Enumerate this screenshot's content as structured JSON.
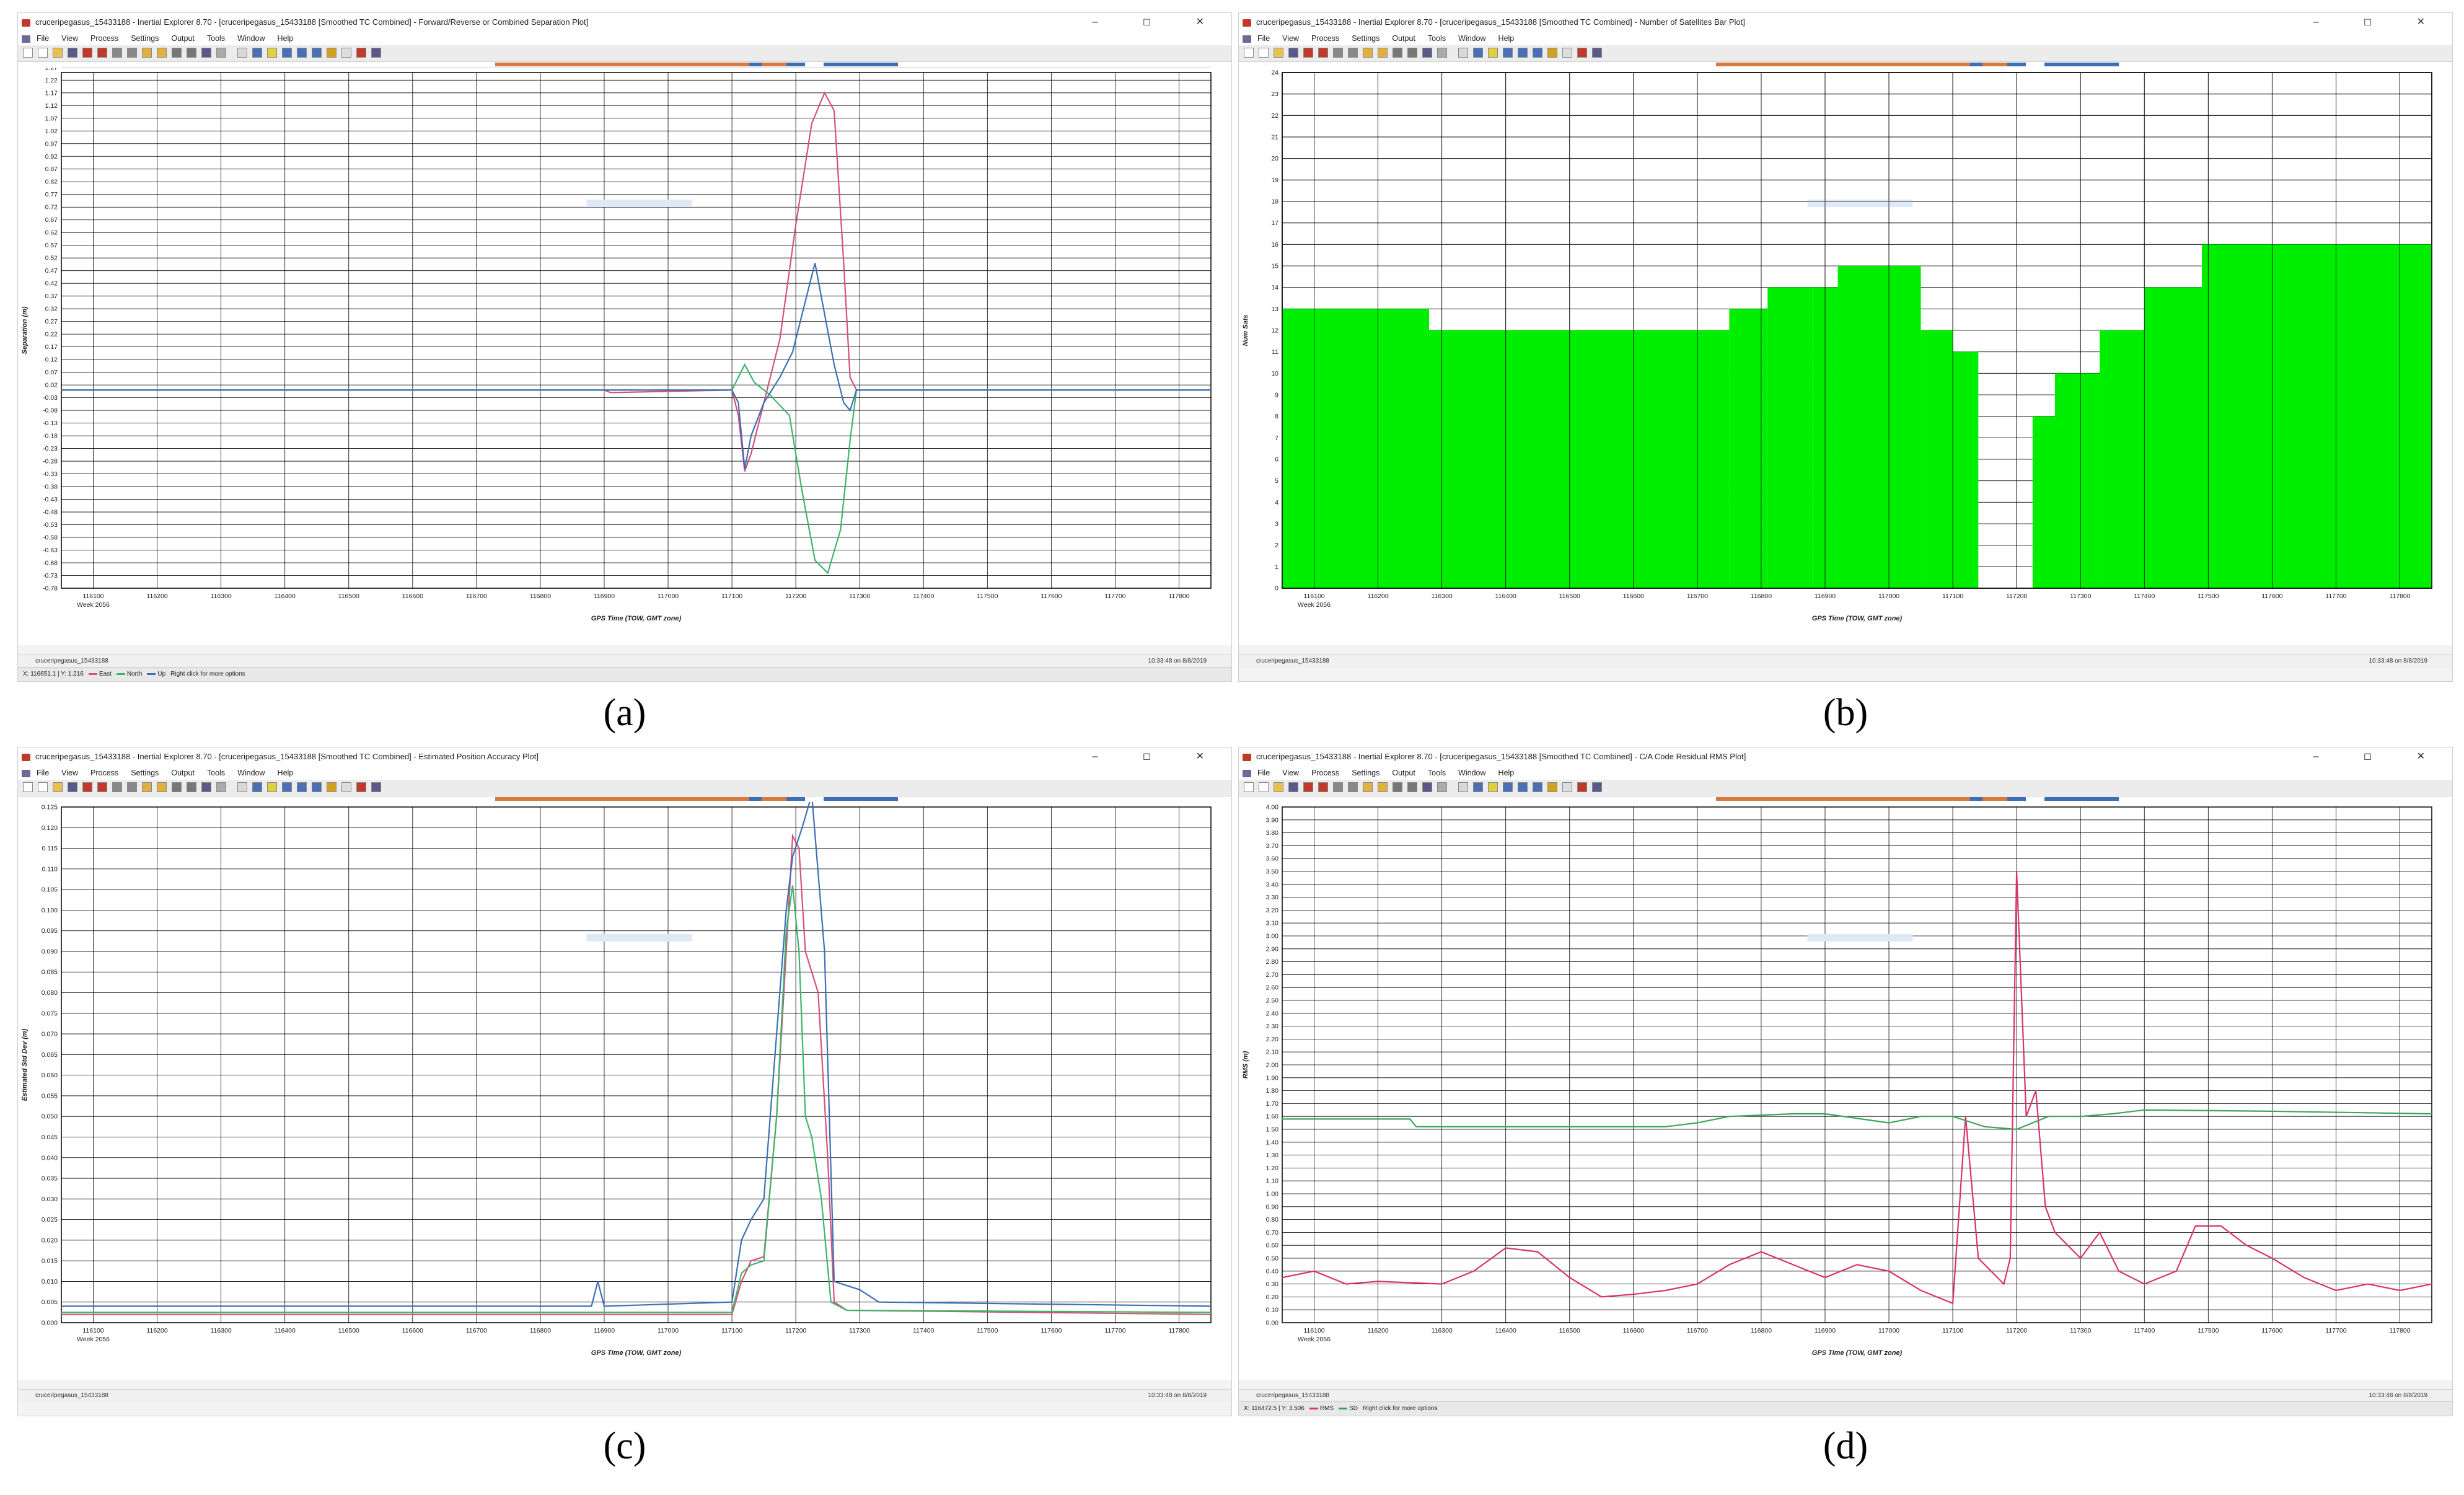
{
  "app": {
    "menu": [
      "File",
      "View",
      "Process",
      "Settings",
      "Output",
      "Tools",
      "Window",
      "Help"
    ],
    "window_buttons": "–  ◻  ✕"
  },
  "panels": [
    {
      "id": "a",
      "caption": "(a)",
      "title": "cruceripegasus_15433188 - Inertial Explorer 8.70 - [cruceripegasus_15433188 [Smoothed TC Combined] - Forward/Reverse or Combined Separation Plot]",
      "file_label": "cruceripegasus_15433188",
      "stamp": "10:33:48 on 8/8/2019",
      "legend_prefix": "X: 116651.1 | Y: 1.216",
      "legend_suffix": "Right click for more options"
    },
    {
      "id": "b",
      "caption": "(b)",
      "title": "cruceripegasus_15433188 - Inertial Explorer 8.70 - [cruceripegasus_15433188 [Smoothed TC Combined] - Number of Satellites Bar Plot]",
      "file_label": "cruceripegasus_15433188",
      "stamp": "10:33:48 on 8/8/2019",
      "legend_prefix": "",
      "legend_suffix": ""
    },
    {
      "id": "c",
      "caption": "(c)",
      "title": "cruceripegasus_15433188 - Inertial Explorer 8.70 - [cruceripegasus_15433188 [Smoothed TC Combined] - Estimated Position Accuracy Plot]",
      "file_label": "cruceripegasus_15433188",
      "stamp": "10:33:48 on 8/8/2019",
      "legend_prefix": "",
      "legend_suffix": ""
    },
    {
      "id": "d",
      "caption": "(d)",
      "title": "cruceripegasus_15433188 - Inertial Explorer 8.70 - [cruceripegasus_15433188 [Smoothed TC Combined] - C/A Code Residual RMS Plot]",
      "file_label": "cruceripegasus_15433188",
      "stamp": "10:33:48 on 8/8/2019",
      "legend_prefix": "X: 116472.5 | Y: 3.506",
      "legend_suffix": "Right click for more options"
    }
  ],
  "colors": {
    "east": "#d8507a",
    "north": "#3cb56a",
    "up": "#3c6fb5",
    "bars": "#00ee00",
    "rms": "#d8336a",
    "sd": "#3ca55a"
  },
  "chart_data": [
    {
      "type": "line",
      "xlabel": "GPS Time (TOW, GMT zone)",
      "ylabel": "Separation (m)",
      "x_ticks": [
        "116100",
        "116200",
        "116300",
        "116400",
        "116500",
        "116600",
        "116700",
        "116800",
        "116900",
        "117000",
        "117100",
        "117200",
        "117300",
        "117400",
        "117500",
        "117600",
        "117700",
        "117800"
      ],
      "x_tick_sub": "Week 2056",
      "xlim": [
        116050,
        117850
      ],
      "ylim": [
        -0.78,
        1.25
      ],
      "y_step": 0.05,
      "series": [
        {
          "name": "East",
          "color_key": "east",
          "points": [
            [
              116050,
              0
            ],
            [
              116900,
              0
            ],
            [
              116910,
              -0.01
            ],
            [
              117100,
              0
            ],
            [
              117110,
              -0.1
            ],
            [
              117120,
              -0.32
            ],
            [
              117130,
              -0.25
            ],
            [
              117150,
              -0.05
            ],
            [
              117175,
              0.2
            ],
            [
              117200,
              0.65
            ],
            [
              117225,
              1.05
            ],
            [
              117245,
              1.17
            ],
            [
              117260,
              1.1
            ],
            [
              117275,
              0.5
            ],
            [
              117285,
              0.05
            ],
            [
              117295,
              0
            ],
            [
              117850,
              0
            ]
          ]
        },
        {
          "name": "North",
          "color_key": "north",
          "points": [
            [
              116050,
              0
            ],
            [
              117100,
              0
            ],
            [
              117110,
              0.05
            ],
            [
              117120,
              0.1
            ],
            [
              117135,
              0.03
            ],
            [
              117160,
              -0.02
            ],
            [
              117190,
              -0.1
            ],
            [
              117210,
              -0.4
            ],
            [
              117230,
              -0.67
            ],
            [
              117250,
              -0.72
            ],
            [
              117270,
              -0.55
            ],
            [
              117285,
              -0.2
            ],
            [
              117295,
              0
            ],
            [
              117850,
              0
            ]
          ]
        },
        {
          "name": "Up",
          "color_key": "up",
          "points": [
            [
              116050,
              0
            ],
            [
              116900,
              0
            ],
            [
              117100,
              0
            ],
            [
              117110,
              -0.05
            ],
            [
              117120,
              -0.31
            ],
            [
              117130,
              -0.18
            ],
            [
              117150,
              -0.05
            ],
            [
              117175,
              0.05
            ],
            [
              117195,
              0.15
            ],
            [
              117215,
              0.35
            ],
            [
              117230,
              0.5
            ],
            [
              117245,
              0.3
            ],
            [
              117260,
              0.1
            ],
            [
              117275,
              -0.05
            ],
            [
              117285,
              -0.08
            ],
            [
              117295,
              0
            ],
            [
              117850,
              0
            ]
          ]
        }
      ]
    },
    {
      "type": "bar",
      "xlabel": "GPS Time (TOW, GMT zone)",
      "ylabel": "Num Sats",
      "x_ticks": [
        "116100",
        "116200",
        "116300",
        "116400",
        "116500",
        "116600",
        "116700",
        "116800",
        "116900",
        "117000",
        "117100",
        "117200",
        "117300",
        "117400",
        "117500",
        "117600",
        "117700",
        "117800"
      ],
      "x_tick_sub": "Week 2056",
      "xlim": [
        116050,
        117850
      ],
      "ylim": [
        0,
        24
      ],
      "y_step": 1,
      "steps": [
        [
          116050,
          13
        ],
        [
          116280,
          12
        ],
        [
          116750,
          13
        ],
        [
          116810,
          14
        ],
        [
          116880,
          14
        ],
        [
          116920,
          15
        ],
        [
          117050,
          12
        ],
        [
          117100,
          11
        ],
        [
          117140,
          0
        ],
        [
          117215,
          0
        ],
        [
          117225,
          8
        ],
        [
          117260,
          10
        ],
        [
          117330,
          12
        ],
        [
          117400,
          14
        ],
        [
          117490,
          16
        ],
        [
          117850,
          16
        ]
      ]
    },
    {
      "type": "line",
      "xlabel": "GPS Time (TOW, GMT zone)",
      "ylabel": "Estimated Std Dev (m)",
      "x_ticks": [
        "116100",
        "116200",
        "116300",
        "116400",
        "116500",
        "116600",
        "116700",
        "116800",
        "116900",
        "117000",
        "117100",
        "117200",
        "117300",
        "117400",
        "117500",
        "117600",
        "117700",
        "117800"
      ],
      "x_tick_sub": "Week 2056",
      "xlim": [
        116050,
        117850
      ],
      "ylim": [
        0,
        0.125
      ],
      "y_step": 0.005,
      "series": [
        {
          "name": "East",
          "color_key": "east",
          "points": [
            [
              116050,
              0.002
            ],
            [
              117100,
              0.002
            ],
            [
              117115,
              0.01
            ],
            [
              117130,
              0.015
            ],
            [
              117150,
              0.016
            ],
            [
              117170,
              0.05
            ],
            [
              117185,
              0.09
            ],
            [
              117195,
              0.118
            ],
            [
              117205,
              0.115
            ],
            [
              117215,
              0.09
            ],
            [
              117235,
              0.08
            ],
            [
              117250,
              0.04
            ],
            [
              117260,
              0.005
            ],
            [
              117280,
              0.003
            ],
            [
              117850,
              0.002
            ]
          ]
        },
        {
          "name": "North",
          "color_key": "north",
          "points": [
            [
              116050,
              0.0025
            ],
            [
              117100,
              0.0025
            ],
            [
              117115,
              0.012
            ],
            [
              117130,
              0.014
            ],
            [
              117150,
              0.015
            ],
            [
              117170,
              0.05
            ],
            [
              117185,
              0.095
            ],
            [
              117195,
              0.106
            ],
            [
              117205,
              0.09
            ],
            [
              117215,
              0.05
            ],
            [
              117225,
              0.045
            ],
            [
              117240,
              0.03
            ],
            [
              117255,
              0.005
            ],
            [
              117280,
              0.003
            ],
            [
              117850,
              0.0025
            ]
          ]
        },
        {
          "name": "Up",
          "color_key": "up",
          "points": [
            [
              116050,
              0.004
            ],
            [
              116880,
              0.004
            ],
            [
              116890,
              0.01
            ],
            [
              116900,
              0.004
            ],
            [
              117100,
              0.005
            ],
            [
              117115,
              0.02
            ],
            [
              117130,
              0.025
            ],
            [
              117150,
              0.03
            ],
            [
              117170,
              0.07
            ],
            [
              117185,
              0.1
            ],
            [
              117195,
              0.113
            ],
            [
              117210,
              0.12
            ],
            [
              117225,
              0.128
            ],
            [
              117245,
              0.09
            ],
            [
              117260,
              0.01
            ],
            [
              117300,
              0.008
            ],
            [
              117330,
              0.005
            ],
            [
              117850,
              0.004
            ]
          ]
        }
      ]
    },
    {
      "type": "line",
      "xlabel": "GPS Time (TOW, GMT zone)",
      "ylabel": "RMS (m)",
      "x_ticks": [
        "116100",
        "116200",
        "116300",
        "116400",
        "116500",
        "116600",
        "116700",
        "116800",
        "116900",
        "117000",
        "117100",
        "117200",
        "117300",
        "117400",
        "117500",
        "117600",
        "117700",
        "117800"
      ],
      "x_tick_sub": "Week 2056",
      "xlim": [
        116050,
        117850
      ],
      "ylim": [
        0,
        4.0
      ],
      "y_step": 0.1,
      "series": [
        {
          "name": "RMS",
          "color_key": "rms",
          "points": [
            [
              116050,
              0.35
            ],
            [
              116100,
              0.4
            ],
            [
              116150,
              0.3
            ],
            [
              116200,
              0.32
            ],
            [
              116300,
              0.3
            ],
            [
              116350,
              0.4
            ],
            [
              116400,
              0.58
            ],
            [
              116450,
              0.55
            ],
            [
              116500,
              0.35
            ],
            [
              116550,
              0.2
            ],
            [
              116600,
              0.22
            ],
            [
              116650,
              0.25
            ],
            [
              116700,
              0.3
            ],
            [
              116750,
              0.45
            ],
            [
              116800,
              0.55
            ],
            [
              116850,
              0.45
            ],
            [
              116900,
              0.35
            ],
            [
              116950,
              0.45
            ],
            [
              117000,
              0.4
            ],
            [
              117050,
              0.25
            ],
            [
              117100,
              0.15
            ],
            [
              117120,
              1.6
            ],
            [
              117140,
              0.5
            ],
            [
              117160,
              0.4
            ],
            [
              117180,
              0.3
            ],
            [
              117190,
              0.5
            ],
            [
              117200,
              3.5
            ],
            [
              117215,
              1.6
            ],
            [
              117230,
              1.8
            ],
            [
              117245,
              0.9
            ],
            [
              117260,
              0.7
            ],
            [
              117280,
              0.6
            ],
            [
              117300,
              0.5
            ],
            [
              117330,
              0.7
            ],
            [
              117360,
              0.4
            ],
            [
              117400,
              0.3
            ],
            [
              117450,
              0.4
            ],
            [
              117480,
              0.75
            ],
            [
              117520,
              0.75
            ],
            [
              117560,
              0.6
            ],
            [
              117600,
              0.5
            ],
            [
              117650,
              0.35
            ],
            [
              117700,
              0.25
            ],
            [
              117750,
              0.3
            ],
            [
              117800,
              0.25
            ],
            [
              117850,
              0.3
            ]
          ]
        },
        {
          "name": "SD",
          "color_key": "sd",
          "points": [
            [
              116050,
              1.58
            ],
            [
              116250,
              1.58
            ],
            [
              116260,
              1.52
            ],
            [
              116600,
              1.52
            ],
            [
              116650,
              1.52
            ],
            [
              116700,
              1.55
            ],
            [
              116750,
              1.6
            ],
            [
              116850,
              1.62
            ],
            [
              116900,
              1.62
            ],
            [
              117000,
              1.55
            ],
            [
              117050,
              1.6
            ],
            [
              117100,
              1.6
            ],
            [
              117150,
              1.52
            ],
            [
              117200,
              1.5
            ],
            [
              117250,
              1.6
            ],
            [
              117300,
              1.6
            ],
            [
              117350,
              1.62
            ],
            [
              117400,
              1.65
            ],
            [
              117600,
              1.64
            ],
            [
              117850,
              1.62
            ]
          ]
        }
      ]
    }
  ]
}
